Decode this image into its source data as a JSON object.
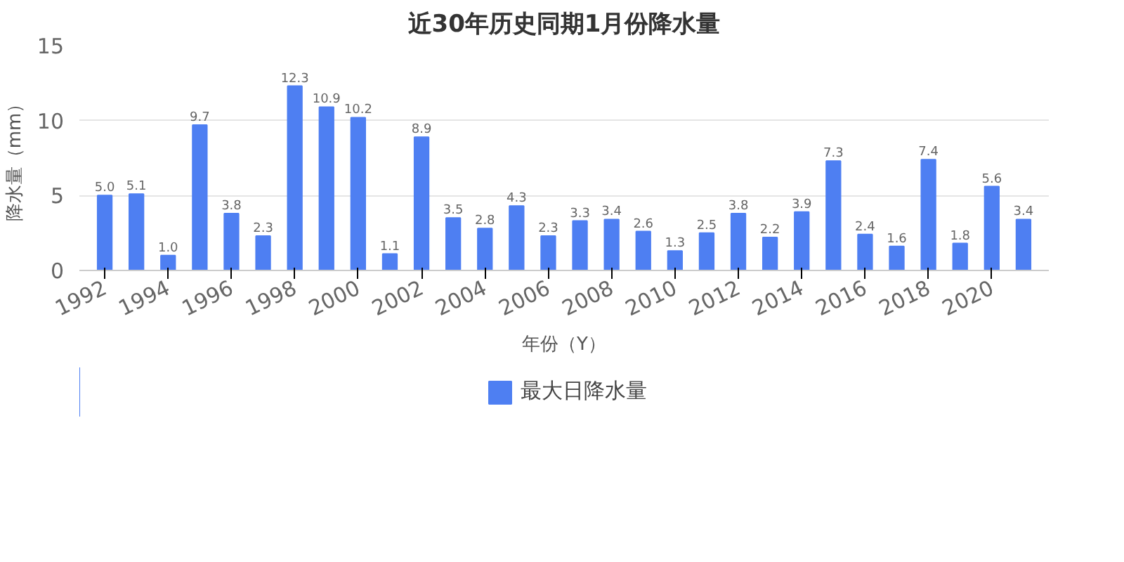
{
  "chart_data": {
    "type": "bar",
    "title": "近30年历史同期1月份降水量",
    "xlabel": "年份（Y）",
    "ylabel": "降水量（mm）",
    "categories": [
      "1992",
      null,
      "1994",
      null,
      "1996",
      null,
      "1998",
      null,
      "2000",
      null,
      "2002",
      null,
      "2004",
      null,
      "2006",
      null,
      "2008",
      null,
      "2010",
      null,
      "2012",
      null,
      "2014",
      null,
      "2016",
      null,
      "2018",
      null,
      "2020",
      null
    ],
    "series": [
      {
        "name": "最大日降水量",
        "color": "#4e7ff2",
        "values": [
          5.0,
          5.1,
          1.0,
          9.7,
          3.8,
          2.3,
          12.3,
          10.9,
          10.2,
          1.1,
          8.9,
          3.5,
          2.8,
          4.3,
          2.3,
          3.3,
          3.4,
          2.6,
          1.3,
          2.5,
          3.8,
          2.2,
          3.9,
          7.3,
          2.4,
          1.6,
          7.4,
          1.8,
          5.6,
          3.4
        ],
        "value_labels": [
          "5.0",
          "5.1",
          "1.0",
          "9.7",
          "3.8",
          "2.3",
          "12.3",
          "10.9",
          "10.2",
          "1.1",
          "8.9",
          "3.5",
          "2.8",
          "4.3",
          "2.3",
          "3.3",
          "3.4",
          "2.6",
          "1.3",
          "2.5",
          "3.8",
          "2.2",
          "3.9",
          "7.3",
          "2.4",
          "1.6",
          "7.4",
          "1.8",
          "5.6",
          "3.4"
        ]
      }
    ],
    "ylim": [
      0,
      15
    ],
    "yticks": [
      0,
      5,
      10,
      15
    ],
    "grid": "y",
    "legend": "bottom"
  }
}
